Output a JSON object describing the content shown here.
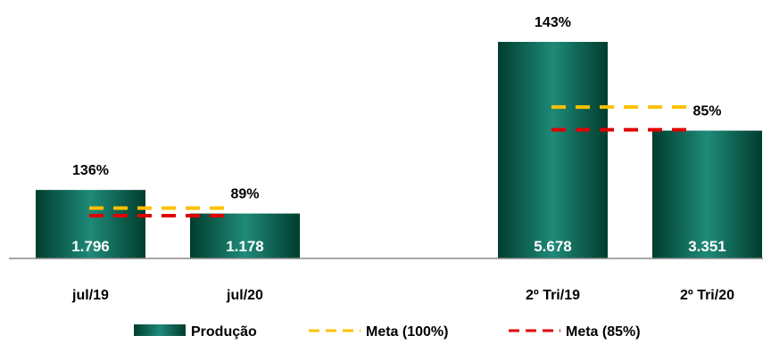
{
  "chart_data": {
    "type": "bar",
    "categories": [
      "jul/19",
      "jul/20",
      "2º Tri/19",
      "2º Tri/20"
    ],
    "groups": [
      {
        "categories": [
          "jul/19",
          "jul/20"
        ],
        "meta_100": 1320,
        "meta_85": 1122
      },
      {
        "categories": [
          "2º Tri/19",
          "2º Tri/20"
        ],
        "meta_100": 3970,
        "meta_85": 3374
      }
    ],
    "series": [
      {
        "name": "Produção",
        "values": [
          1796,
          1178,
          5678,
          3351
        ],
        "value_labels": [
          "1.796",
          "1.178",
          "5.678",
          "3.351"
        ]
      },
      {
        "name": "Meta (100%)"
      },
      {
        "name": "Meta (85%)"
      }
    ],
    "percent_labels": [
      "136%",
      "89%",
      "143%",
      "85%"
    ],
    "ylim": [
      0,
      6000
    ],
    "grid": false,
    "legend_position": "bottom",
    "colors": {
      "bar_dark": "#004a38",
      "bar_light": "#1f8a78",
      "meta_100": "#ffc000",
      "meta_85": "#e00000",
      "axis": "#888888",
      "text": "#000000"
    }
  }
}
